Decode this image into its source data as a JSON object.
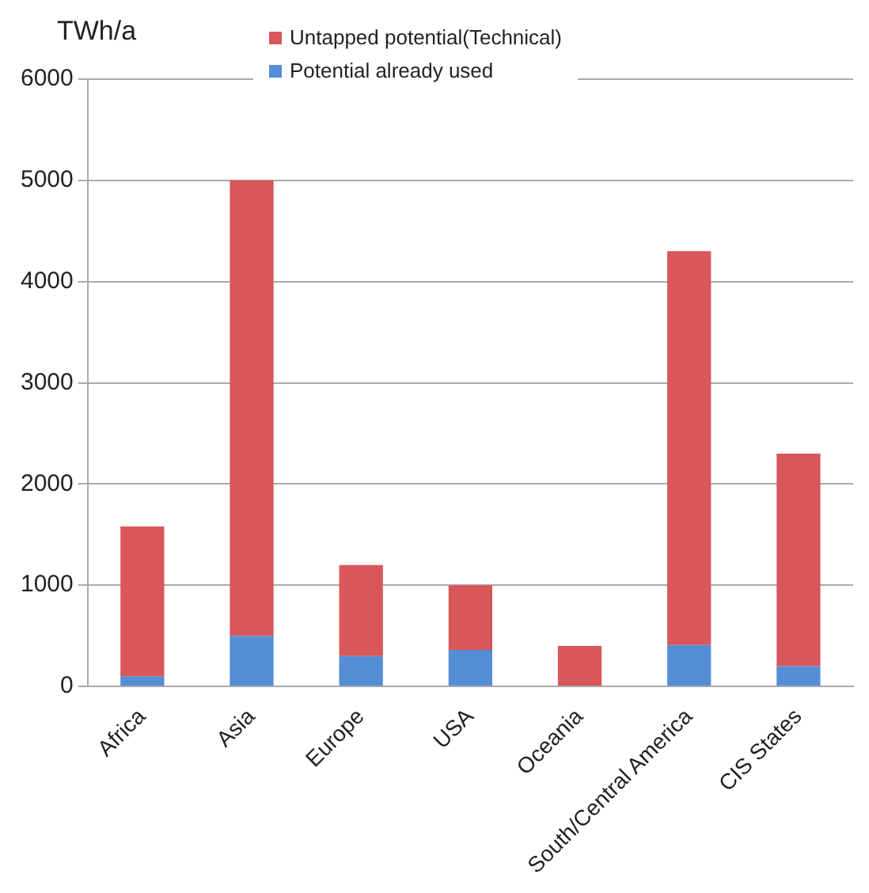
{
  "chart_data": {
    "type": "bar",
    "ylabel": "TWh/a",
    "categories": [
      "Africa",
      "Asia",
      "Europe",
      "USA",
      "Oceania",
      "South/Central America",
      "CIS States"
    ],
    "stacked": true,
    "series": [
      {
        "name": "Potential already used",
        "color": "#558ed5",
        "values": [
          100,
          500,
          300,
          360,
          0,
          410,
          200
        ]
      },
      {
        "name": "Untapped potential(Technical)",
        "color": "#d9565a",
        "values": [
          1480,
          4500,
          900,
          640,
          400,
          3890,
          2100
        ]
      }
    ],
    "ylim": [
      0,
      6000
    ],
    "yticks": [
      0,
      1000,
      2000,
      3000,
      4000,
      5000,
      6000
    ],
    "grid": "y",
    "legend": "top"
  }
}
